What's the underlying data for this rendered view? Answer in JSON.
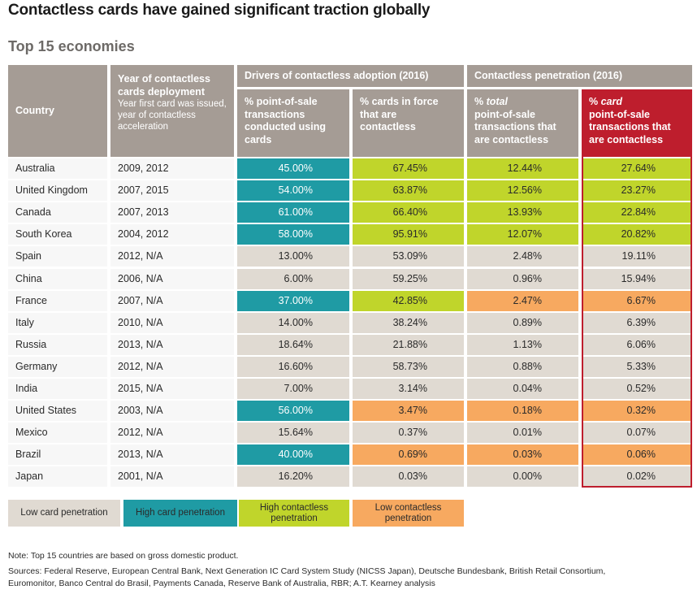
{
  "title": "Contactless cards have gained significant traction globally",
  "subtitle": "Top 15 economies",
  "colors": {
    "header": "#a59c95",
    "highlight": "#be1e2d",
    "low_card": "#e0dad2",
    "high_card": "#1f9ba4",
    "high_contactless": "#c0d52b",
    "low_contactless": "#f7a960"
  },
  "table": {
    "group_headers": {
      "drivers": "Drivers of contactless adoption (2016)",
      "penetration": "Contactless penetration (2016)"
    },
    "columns": {
      "country": "Country",
      "year_title": "Year of contactless cards deployment",
      "year_sub": "Year first card was issued, year of contactless acceleration",
      "pos_cards": "% point-of-sale transactions conducted using cards",
      "cards_contactless": "% cards in force that are contactless",
      "total_prefix": "% ",
      "total_em": "total",
      "total_rest": "point-of-sale transactions that are contactless",
      "card_prefix": "% ",
      "card_em": "card",
      "card_rest": "point-of-sale transactions that are contactless"
    },
    "rows": [
      {
        "country": "Australia",
        "year": "2009, 2012",
        "v": [
          "45.00%",
          "67.45%",
          "12.44%",
          "27.64%"
        ],
        "c": [
          "high_card",
          "high_contactless",
          "high_contactless",
          "high_contactless"
        ]
      },
      {
        "country": "United Kingdom",
        "year": "2007, 2015",
        "v": [
          "54.00%",
          "63.87%",
          "12.56%",
          "23.27%"
        ],
        "c": [
          "high_card",
          "high_contactless",
          "high_contactless",
          "high_contactless"
        ]
      },
      {
        "country": "Canada",
        "year": "2007, 2013",
        "v": [
          "61.00%",
          "66.40%",
          "13.93%",
          "22.84%"
        ],
        "c": [
          "high_card",
          "high_contactless",
          "high_contactless",
          "high_contactless"
        ]
      },
      {
        "country": "South Korea",
        "year": "2004, 2012",
        "v": [
          "58.00%",
          "95.91%",
          "12.07%",
          "20.82%"
        ],
        "c": [
          "high_card",
          "high_contactless",
          "high_contactless",
          "high_contactless"
        ]
      },
      {
        "country": "Spain",
        "year": "2012, N/A",
        "v": [
          "13.00%",
          "53.09%",
          "2.48%",
          "19.11%"
        ],
        "c": [
          "low",
          "low",
          "low",
          "low"
        ]
      },
      {
        "country": "China",
        "year": "2006, N/A",
        "v": [
          "6.00%",
          "59.25%",
          "0.96%",
          "15.94%"
        ],
        "c": [
          "low",
          "low",
          "low",
          "low"
        ]
      },
      {
        "country": "France",
        "year": "2007, N/A",
        "v": [
          "37.00%",
          "42.85%",
          "2.47%",
          "6.67%"
        ],
        "c": [
          "high_card",
          "high_contactless",
          "low_contactless",
          "low_contactless"
        ]
      },
      {
        "country": "Italy",
        "year": "2010, N/A",
        "v": [
          "14.00%",
          "38.24%",
          "0.89%",
          "6.39%"
        ],
        "c": [
          "low",
          "low",
          "low",
          "low"
        ]
      },
      {
        "country": "Russia",
        "year": "2013, N/A",
        "v": [
          "18.64%",
          "21.88%",
          "1.13%",
          "6.06%"
        ],
        "c": [
          "low",
          "low",
          "low",
          "low"
        ]
      },
      {
        "country": "Germany",
        "year": "2012, N/A",
        "v": [
          "16.60%",
          "58.73%",
          "0.88%",
          "5.33%"
        ],
        "c": [
          "low",
          "low",
          "low",
          "low"
        ]
      },
      {
        "country": "India",
        "year": "2015, N/A",
        "v": [
          "7.00%",
          "3.14%",
          "0.04%",
          "0.52%"
        ],
        "c": [
          "low",
          "low",
          "low",
          "low"
        ]
      },
      {
        "country": "United States",
        "year": "2003, N/A",
        "v": [
          "56.00%",
          "3.47%",
          "0.18%",
          "0.32%"
        ],
        "c": [
          "high_card",
          "low_contactless",
          "low_contactless",
          "low_contactless"
        ]
      },
      {
        "country": "Mexico",
        "year": "2012, N/A",
        "v": [
          "15.64%",
          "0.37%",
          "0.01%",
          "0.07%"
        ],
        "c": [
          "low",
          "low",
          "low",
          "low"
        ]
      },
      {
        "country": "Brazil",
        "year": "2013, N/A",
        "v": [
          "40.00%",
          "0.69%",
          "0.03%",
          "0.06%"
        ],
        "c": [
          "high_card",
          "low_contactless",
          "low_contactless",
          "low_contactless"
        ]
      },
      {
        "country": "Japan",
        "year": "2001, N/A",
        "v": [
          "16.20%",
          "0.03%",
          "0.00%",
          "0.02%"
        ],
        "c": [
          "low",
          "low",
          "low",
          "low"
        ]
      }
    ]
  },
  "legend": [
    {
      "label": "Low card penetration",
      "key": "low"
    },
    {
      "label": "High card penetration",
      "key": "high_card"
    },
    {
      "label": "High contactless penetration",
      "key": "high_contactless"
    },
    {
      "label": "Low contactless penetration",
      "key": "low_contactless"
    }
  ],
  "note": "Note: Top 15 countries are based on gross domestic product.",
  "sources_line1": "Sources: Federal Reserve, European Central Bank, Next Generation IC Card System Study (NICSS Japan), Deutsche Bundesbank, British Retail Consortium,",
  "sources_line2": "Euromonitor, Banco Central do Brasil, Payments Canada, Reserve Bank of Australia, RBR; A.T. Kearney analysis"
}
